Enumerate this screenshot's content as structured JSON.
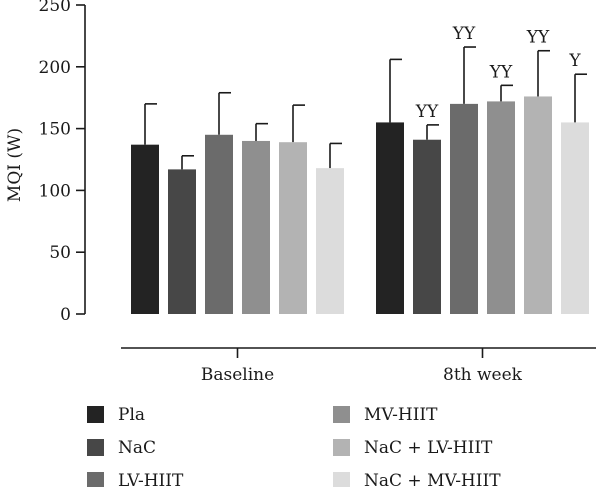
{
  "chart_data": {
    "type": "bar",
    "ylabel": "MQI (W)",
    "xlabel": "",
    "ylim": [
      0,
      250
    ],
    "yticks": [
      0,
      50,
      100,
      150,
      200,
      250
    ],
    "grid": false,
    "legend_position": "bottom",
    "categories": [
      "Baseline",
      "8th week"
    ],
    "series": [
      {
        "name": "Pla",
        "color": "#232323",
        "values": [
          137,
          155
        ],
        "errors": [
          33,
          51
        ],
        "annotations": [
          "",
          ""
        ]
      },
      {
        "name": "NaC",
        "color": "#474747",
        "values": [
          117,
          141
        ],
        "errors": [
          11,
          12
        ],
        "annotations": [
          "",
          "YY"
        ]
      },
      {
        "name": "LV-HIIT",
        "color": "#6b6b6b",
        "values": [
          145,
          170
        ],
        "errors": [
          34,
          46
        ],
        "annotations": [
          "",
          "YY"
        ]
      },
      {
        "name": "MV-HIIT",
        "color": "#8f8f8f",
        "values": [
          140,
          172
        ],
        "errors": [
          14,
          13
        ],
        "annotations": [
          "",
          "YY"
        ]
      },
      {
        "name": "NaC + LV-HIIT",
        "color": "#b3b3b3",
        "values": [
          139,
          176
        ],
        "errors": [
          30,
          37
        ],
        "annotations": [
          "",
          "YY"
        ]
      },
      {
        "name": "NaC + MV-HIIT",
        "color": "#dcdcdc",
        "values": [
          118,
          155
        ],
        "errors": [
          20,
          39
        ],
        "annotations": [
          "",
          "Y"
        ]
      }
    ]
  }
}
